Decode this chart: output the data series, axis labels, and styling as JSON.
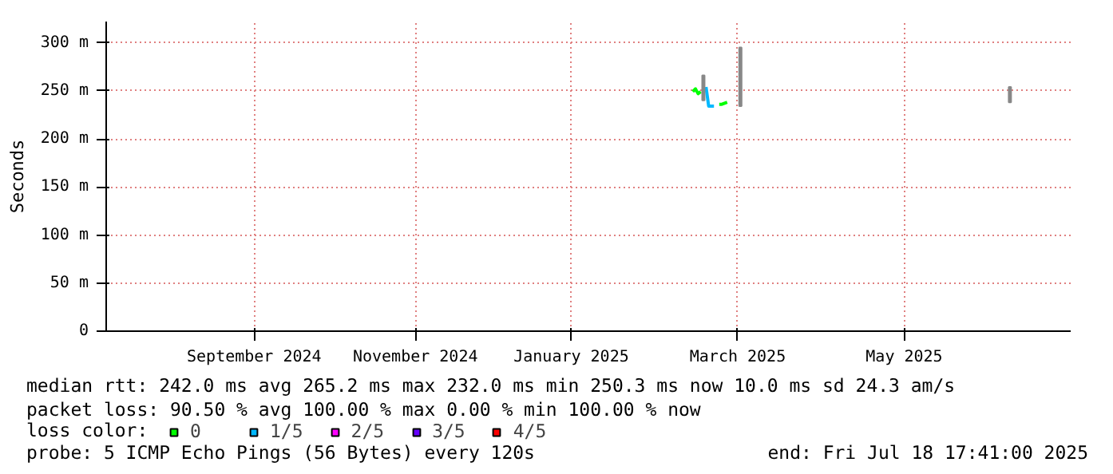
{
  "chart_data": {
    "type": "line",
    "ylabel": "Seconds",
    "legend_title": "loss color:",
    "x": [
      "2025-02-25",
      "2025-02-26",
      "2025-02-27",
      "2025-02-28",
      "2025-03-01",
      "2025-03-02",
      "2025-03-03",
      "2025-03-05",
      "2025-03-07",
      "2025-03-08",
      "2025-03-10"
    ],
    "series": [
      {
        "name": "0",
        "color": "#00ff00",
        "values": [
          249,
          252,
          247,
          249,
          null,
          null,
          null,
          null,
          236,
          236,
          238
        ]
      },
      {
        "name": "1/5",
        "color": "#00b8ff",
        "values": [
          null,
          null,
          null,
          null,
          null,
          254,
          234,
          234,
          null,
          null,
          null
        ]
      },
      {
        "name": "2/5",
        "color": "#ff00ff",
        "values": [
          null,
          null,
          null,
          null,
          null,
          null,
          null,
          null,
          null,
          null,
          null
        ]
      },
      {
        "name": "3/5",
        "color": "#6600ff",
        "values": [
          null,
          null,
          null,
          null,
          null,
          null,
          null,
          null,
          null,
          null,
          null
        ]
      },
      {
        "name": "4/5",
        "color": "#ff0000",
        "values": [
          null,
          null,
          null,
          null,
          null,
          null,
          null,
          null,
          null,
          null,
          null
        ]
      },
      {
        "type": "bar",
        "color": "#888888",
        "x": [
          "2025-03-01",
          "2025-03-15",
          "2025-06-25"
        ],
        "base": [
          240,
          234,
          238
        ],
        "values": [
          26,
          61,
          16
        ]
      }
    ],
    "xlim": [
      "2024-07-18",
      "2025-07-18"
    ],
    "xticks": [
      {
        "value": "2024-09-12",
        "label": "September 2024"
      },
      {
        "value": "2024-11-12",
        "label": "November 2024"
      },
      {
        "value": "2025-01-10",
        "label": "January 2025"
      },
      {
        "value": "2025-03-14",
        "label": "March 2025"
      },
      {
        "value": "2025-05-16",
        "label": "May 2025"
      }
    ],
    "ylim": [
      0,
      322
    ],
    "yticks": [
      0,
      {
        "value": 50,
        "label": "50 m"
      },
      {
        "value": 100,
        "label": "100 m"
      },
      {
        "value": 150,
        "label": "150 m"
      },
      {
        "value": 200,
        "label": "200 m"
      },
      {
        "value": 250,
        "label": "250 m"
      },
      {
        "value": 300,
        "label": "300 m"
      }
    ],
    "grid": true,
    "legend": "bottom",
    "annotations": [
      "median rtt:  242.0 ms avg  265.2 ms max  232.0 ms min  250.3 ms now  10.0 ms sd  24.3   am/s",
      "packet loss: 90.50 % avg  100.00 % max  0.00 % min  100.00 % now",
      "probe:       5 ICMP Echo Pings (56 Bytes) every 120s",
      "end: Fri Jul 18 17:41:00 2025"
    ]
  }
}
